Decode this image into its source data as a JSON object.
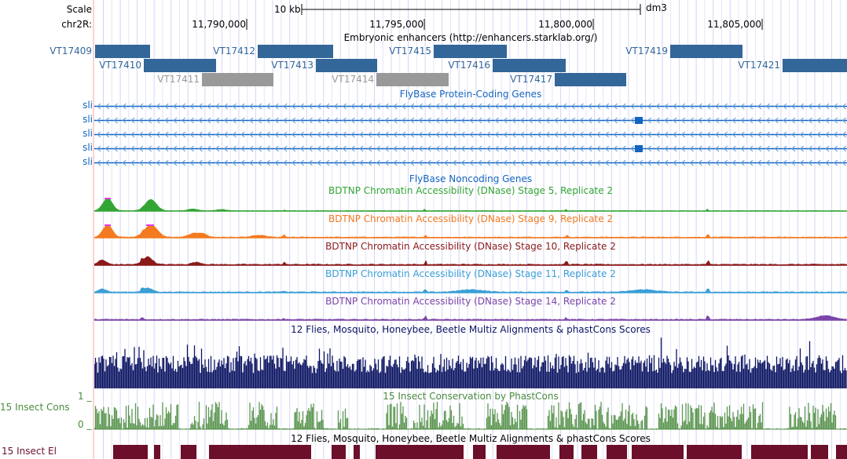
{
  "header": {
    "scale_label": "Scale",
    "scale_bar_label": "10 kb",
    "assembly": "dm3",
    "chrom_label": "chr2R:",
    "ticks": [
      "11,790,000",
      "11,795,000",
      "11,800,000",
      "11,805,000"
    ]
  },
  "colors": {
    "enhancer": "#336699",
    "enhancer_gray": "#999999",
    "gene": "#1565c0",
    "stage5": "#33a535",
    "stage9": "#f47a20",
    "stage10": "#8b1a1a",
    "stage11": "#3b9fd6",
    "stage14": "#7a44a8",
    "multiz": "#0b1462",
    "cons": "#4b8b3f",
    "elements": "#6b0f2b",
    "peak_clip": "#e040e0"
  },
  "enhancers": {
    "title": "Embryonic enhancers (http://enhancers.starklab.org/)",
    "items": [
      {
        "label": "VT17409",
        "gray": false
      },
      {
        "label": "VT17410",
        "gray": false
      },
      {
        "label": "VT17411",
        "gray": true
      },
      {
        "label": "VT17412",
        "gray": false
      },
      {
        "label": "VT17413",
        "gray": false
      },
      {
        "label": "VT17414",
        "gray": true
      },
      {
        "label": "VT17415",
        "gray": false
      },
      {
        "label": "VT17416",
        "gray": false
      },
      {
        "label": "VT17417",
        "gray": false
      },
      {
        "label": "VT17419",
        "gray": false
      },
      {
        "label": "VT17421",
        "gray": false
      }
    ]
  },
  "genes": {
    "title": "FlyBase Protein-Coding Genes",
    "rows": [
      "sli",
      "sli",
      "sli",
      "sli",
      "sli"
    ],
    "direction": "minus",
    "noncoding_title": "FlyBase Noncoding Genes"
  },
  "dnase": [
    {
      "title": "BDTNP Chromatin Accessibility (DNase) Stage 5, Replicate 2"
    },
    {
      "title": "BDTNP Chromatin Accessibility (DNase) Stage 9, Replicate 2"
    },
    {
      "title": "BDTNP Chromatin Accessibility (DNase) Stage 10, Replicate 2"
    },
    {
      "title": "BDTNP Chromatin Accessibility (DNase) Stage 11, Replicate 2"
    },
    {
      "title": "BDTNP Chromatin Accessibility (DNase) Stage 14, Replicate 2"
    }
  ],
  "conservation": {
    "multiz_title": "12 Flies, Mosquito, Honeybee, Beetle Multiz Alignments & phastCons Scores",
    "phastcons_title": "15 Insect Conservation by PhastCons",
    "phastcons_label": "15 Insect Cons",
    "axis_max": "1 _",
    "axis_min": "0 _",
    "elements_title": "12 Flies, Mosquito, Honeybee, Beetle Multiz Alignments & phastCons Scores",
    "elements_label": "15 Insect El"
  }
}
